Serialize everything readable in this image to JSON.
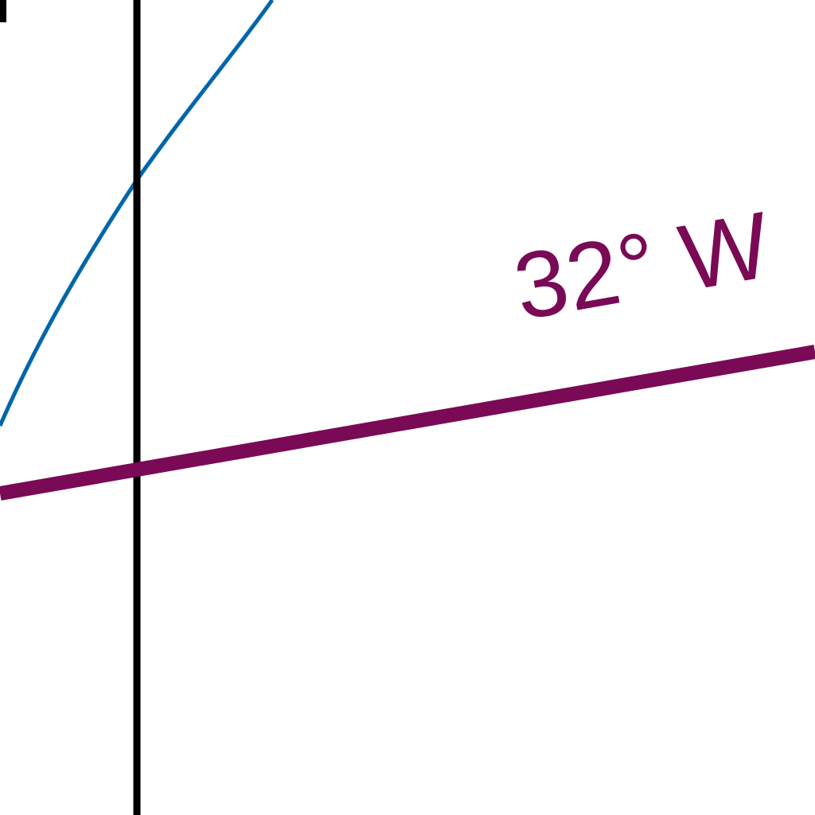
{
  "map": {
    "meridian_label": "32° W",
    "colors": {
      "meridian": "#7a0a55",
      "coastline": "#0066aa",
      "grid_line": "#000000",
      "background": "#ffffff"
    }
  }
}
